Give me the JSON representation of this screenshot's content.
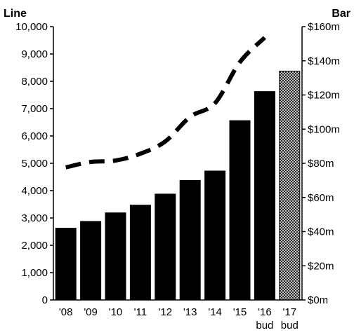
{
  "chart_data": {
    "type": "bar",
    "categories": [
      "'08",
      "'09",
      "'10",
      "'11",
      "'12",
      "'13",
      "'14",
      "'15",
      "'16",
      "'17"
    ],
    "category_sublabels": [
      "",
      "",
      "",
      "",
      "",
      "",
      "",
      "",
      "bud",
      "bud"
    ],
    "bar_values": [
      42,
      46,
      51,
      55.5,
      62,
      70,
      75.5,
      105,
      122,
      134
    ],
    "bar_styles": [
      "solid",
      "solid",
      "solid",
      "solid",
      "solid",
      "solid",
      "solid",
      "solid",
      "solid",
      "dotted"
    ],
    "line_values": [
      4850,
      5050,
      5100,
      5350,
      5800,
      6700,
      7200,
      8700,
      9600
    ],
    "line_style": "dashed",
    "left_axis": {
      "title": "Line",
      "ylim": [
        0,
        10000
      ],
      "ticks": [
        0,
        1000,
        2000,
        3000,
        4000,
        5000,
        6000,
        7000,
        8000,
        9000,
        10000
      ],
      "tick_labels": [
        "0",
        "1,000",
        "2,000",
        "3,000",
        "4,000",
        "5,000",
        "6,000",
        "7,000",
        "8,000",
        "9,000",
        "10,000"
      ]
    },
    "right_axis": {
      "title": "Bar",
      "ylim": [
        0,
        160
      ],
      "ticks": [
        0,
        20,
        40,
        60,
        80,
        100,
        120,
        140,
        160
      ],
      "tick_labels": [
        "$0m",
        "$20m",
        "$40m",
        "$60m",
        "$80m",
        "$100m",
        "$120m",
        "$140m",
        "$160m"
      ]
    },
    "grid": false,
    "colors": {
      "bar": "#000000",
      "line": "#000000",
      "dotted_bar_bg": "#bfbfbf"
    }
  }
}
